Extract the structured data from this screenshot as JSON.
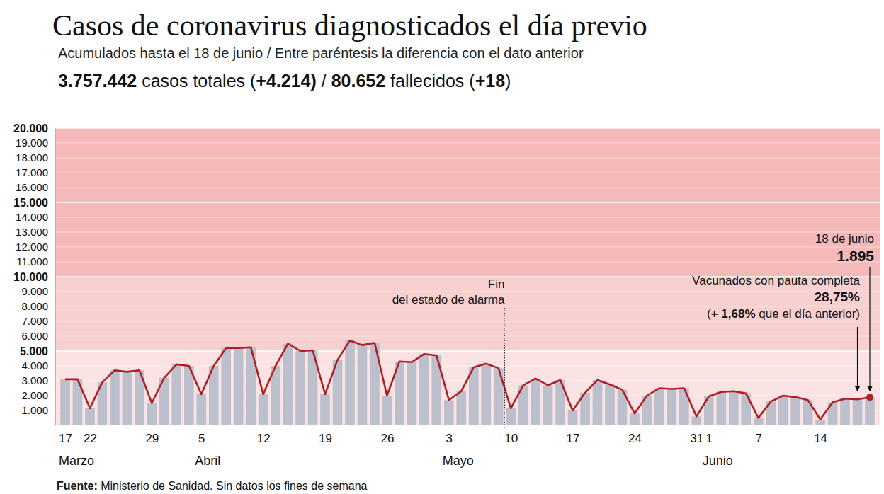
{
  "chart_data": {
    "type": "bar",
    "title": "Casos de coronavirus diagnosticados el día previo",
    "subtitle": "Acumulados hasta el 18 de junio / Entre paréntesis la diferencia con el dato anterior",
    "header": [
      {
        "text": "3.757.442",
        "bold": true
      },
      {
        "text": " casos totales ("
      },
      {
        "text": "+4.214)",
        "bold": true
      },
      {
        "text": " / "
      },
      {
        "text": "80.652",
        "bold": true
      },
      {
        "text": " fallecidos ("
      },
      {
        "text": "+18",
        "bold": true
      },
      {
        "text": ")"
      }
    ],
    "source": [
      {
        "text": "Fuente:",
        "bold": true
      },
      {
        "text": " Ministerio de Sanidad. Sin datos los fines de semana"
      }
    ],
    "categories": [
      "17",
      null,
      "22",
      null,
      null,
      null,
      null,
      "29",
      null,
      null,
      null,
      "5",
      null,
      null,
      null,
      null,
      "12",
      null,
      null,
      null,
      null,
      "19",
      null,
      null,
      null,
      null,
      "26",
      null,
      null,
      null,
      null,
      "3",
      null,
      null,
      null,
      null,
      "10",
      null,
      null,
      null,
      null,
      "17",
      null,
      null,
      null,
      null,
      "24",
      null,
      null,
      null,
      null,
      "31",
      "1",
      null,
      null,
      null,
      "7",
      null,
      null,
      null,
      null,
      "14",
      null,
      null,
      null,
      null
    ],
    "months": [
      {
        "label": "Marzo",
        "category": 0
      },
      {
        "label": "Abril",
        "category": 11
      },
      {
        "label": "Mayo",
        "category": 31
      },
      {
        "label": "Junio",
        "category": 52
      }
    ],
    "series": [
      {
        "type": "bar",
        "color": "#bcbfcc",
        "values": [
          3100,
          3100,
          1150,
          2900,
          3700,
          3600,
          3700,
          1500,
          3200,
          4100,
          4000,
          2100,
          4000,
          5200,
          5200,
          5250,
          2100,
          4000,
          5500,
          5000,
          5050,
          2100,
          4400,
          5700,
          5400,
          5550,
          2000,
          4300,
          4250,
          4800,
          4700,
          1700,
          2300,
          3900,
          4150,
          3850,
          1150,
          2700,
          3150,
          2700,
          3050,
          1000,
          2200,
          3050,
          2750,
          2400,
          800,
          2000,
          2500,
          2450,
          2500,
          600,
          1950,
          2250,
          2300,
          2150,
          500,
          1600,
          2000,
          1900,
          1700,
          400,
          1550,
          1800,
          1750,
          1895
        ]
      },
      {
        "type": "line",
        "color": "#b01e23",
        "marker": "last",
        "values": [
          3100,
          3100,
          1150,
          2900,
          3700,
          3600,
          3700,
          1500,
          3200,
          4100,
          4000,
          2100,
          4000,
          5200,
          5200,
          5250,
          2100,
          4000,
          5500,
          5000,
          5050,
          2100,
          4400,
          5700,
          5400,
          5550,
          2000,
          4300,
          4250,
          4800,
          4700,
          1700,
          2300,
          3900,
          4150,
          3850,
          1150,
          2700,
          3150,
          2700,
          3050,
          1000,
          2200,
          3050,
          2750,
          2400,
          800,
          2000,
          2500,
          2450,
          2500,
          600,
          1950,
          2250,
          2300,
          2150,
          500,
          1600,
          2000,
          1900,
          1700,
          400,
          1550,
          1800,
          1750,
          1895
        ]
      }
    ],
    "ylim": [
      0,
      20000
    ],
    "yticks": [
      {
        "value": 1000,
        "label": "1.000"
      },
      {
        "value": 2000,
        "label": "2.000"
      },
      {
        "value": 3000,
        "label": "3.000"
      },
      {
        "value": 4000,
        "label": "4.000"
      },
      {
        "value": 5000,
        "label": "5.000"
      },
      {
        "value": 6000,
        "label": "6.000"
      },
      {
        "value": 7000,
        "label": "7.000"
      },
      {
        "value": 8000,
        "label": "8.000"
      },
      {
        "value": 9000,
        "label": "9.000"
      },
      {
        "value": 10000,
        "label": "10.000"
      },
      {
        "value": 11000,
        "label": "11.000"
      },
      {
        "value": 12000,
        "label": "12.000"
      },
      {
        "value": 13000,
        "label": "13.000"
      },
      {
        "value": 14000,
        "label": "14.000"
      },
      {
        "value": 15000,
        "label": "15.000"
      },
      {
        "value": 16000,
        "label": "16.000"
      },
      {
        "value": 17000,
        "label": "17.000"
      },
      {
        "value": 18000,
        "label": "18.000"
      },
      {
        "value": 19000,
        "label": "19.000"
      },
      {
        "value": 20000,
        "label": "20.000"
      }
    ],
    "grid": true,
    "bands": [
      [
        0,
        5000
      ],
      [
        5000,
        10000
      ],
      [
        10000,
        15000
      ],
      [
        15000,
        20000
      ]
    ],
    "annotations": [
      {
        "lines": [
          "Fin",
          "del estado de alarma"
        ],
        "category": 36
      }
    ],
    "last_point": {
      "date": "18 de junio",
      "value": 1895,
      "label": "1.895",
      "category": 65
    },
    "vaccinated": {
      "text": "Vacunados con pauta completa",
      "value": 28.75,
      "label": "28,75%",
      "delta": [
        "(",
        "+ 1,68%",
        " que el día anterior)"
      ],
      "category": 64
    }
  }
}
